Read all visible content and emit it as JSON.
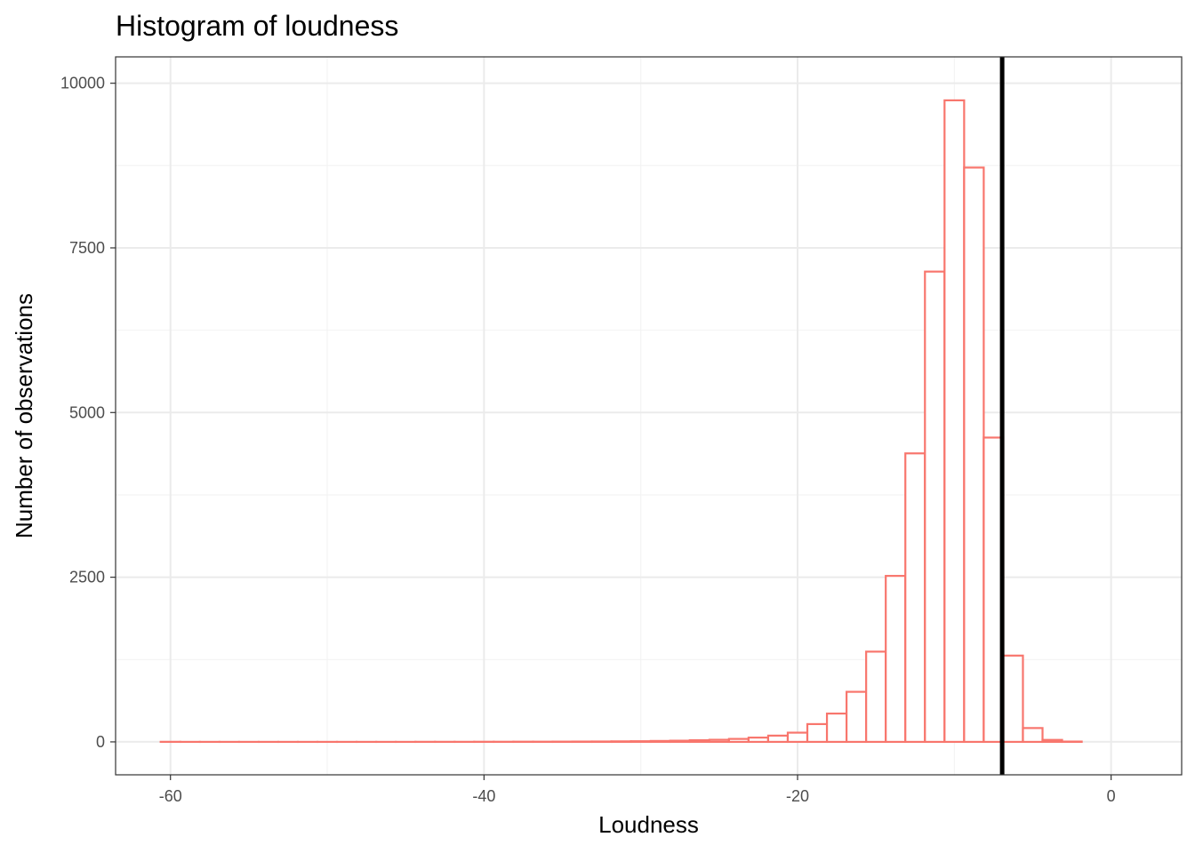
{
  "chart_data": {
    "type": "histogram",
    "title": "Histogram of loudness",
    "xlabel": "Loudness",
    "ylabel": "Number of observations",
    "xlim": [
      -63.5,
      4.5
    ],
    "ylim": [
      -500,
      10400
    ],
    "x_ticks": [
      -60,
      -40,
      -20,
      0
    ],
    "y_ticks": [
      0,
      2500,
      5000,
      7500,
      10000
    ],
    "x_tick_labels": [
      "-60",
      "-40",
      "-20",
      "0"
    ],
    "y_tick_labels": [
      "0",
      "2500",
      "5000",
      "7500",
      "10000"
    ],
    "bin_width": 1.25,
    "bin_start": -60.625,
    "bin_counts": [
      1,
      0,
      0,
      0,
      0,
      0,
      0,
      0,
      0,
      0,
      0,
      0,
      0,
      1,
      1,
      1,
      2,
      2,
      3,
      3,
      4,
      5,
      6,
      8,
      10,
      14,
      18,
      25,
      32,
      45,
      65,
      95,
      140,
      270,
      430,
      760,
      1370,
      2520,
      4380,
      7140,
      9740,
      8720,
      4620,
      1310,
      210,
      30,
      5
    ],
    "vline_x": -6.95,
    "bar_color": "#f8766d",
    "vline_color": "#000000",
    "grid": true,
    "theme": "bw"
  }
}
